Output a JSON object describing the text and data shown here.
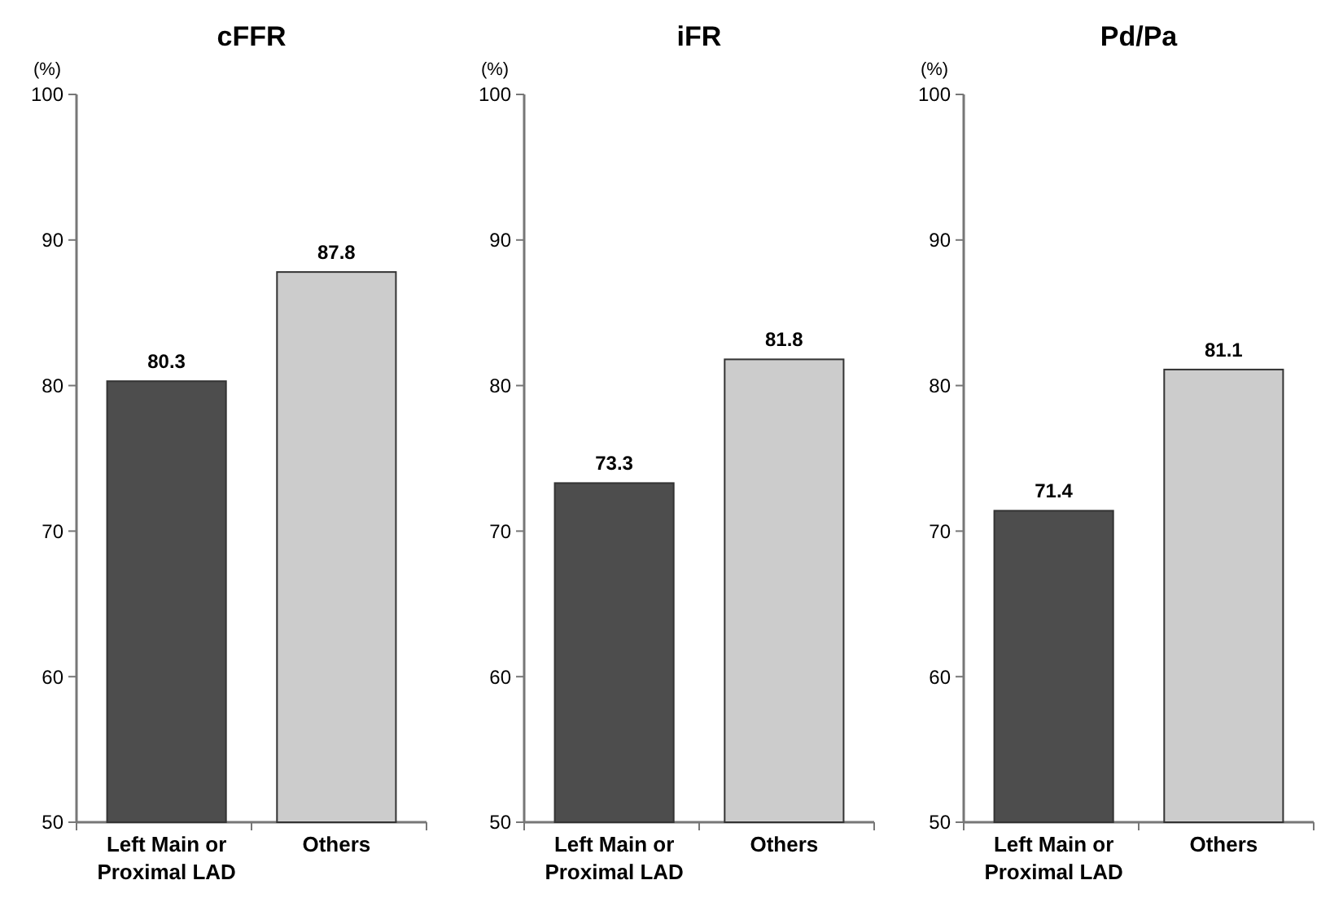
{
  "chart_data": [
    {
      "type": "bar",
      "title": "cFFR",
      "ylabel": "(%)",
      "categories": [
        "Left Main or Proximal LAD",
        "Others"
      ],
      "values": [
        80.3,
        87.8
      ],
      "colors": [
        "#4d4d4d",
        "#cccccc"
      ],
      "ylim": [
        50,
        100
      ],
      "yticks": [
        50,
        60,
        70,
        80,
        90,
        100
      ],
      "data_labels": true
    },
    {
      "type": "bar",
      "title": "iFR",
      "ylabel": "(%)",
      "categories": [
        "Left Main or Proximal LAD",
        "Others"
      ],
      "values": [
        73.3,
        81.8
      ],
      "colors": [
        "#4d4d4d",
        "#cccccc"
      ],
      "ylim": [
        50,
        100
      ],
      "yticks": [
        50,
        60,
        70,
        80,
        90,
        100
      ],
      "data_labels": true
    },
    {
      "type": "bar",
      "title": "Pd/Pa",
      "ylabel": "(%)",
      "categories": [
        "Left Main or Proximal LAD",
        "Others"
      ],
      "values": [
        71.4,
        81.1
      ],
      "colors": [
        "#4d4d4d",
        "#cccccc"
      ],
      "ylim": [
        50,
        100
      ],
      "yticks": [
        50,
        60,
        70,
        80,
        90,
        100
      ],
      "data_labels": true
    }
  ]
}
